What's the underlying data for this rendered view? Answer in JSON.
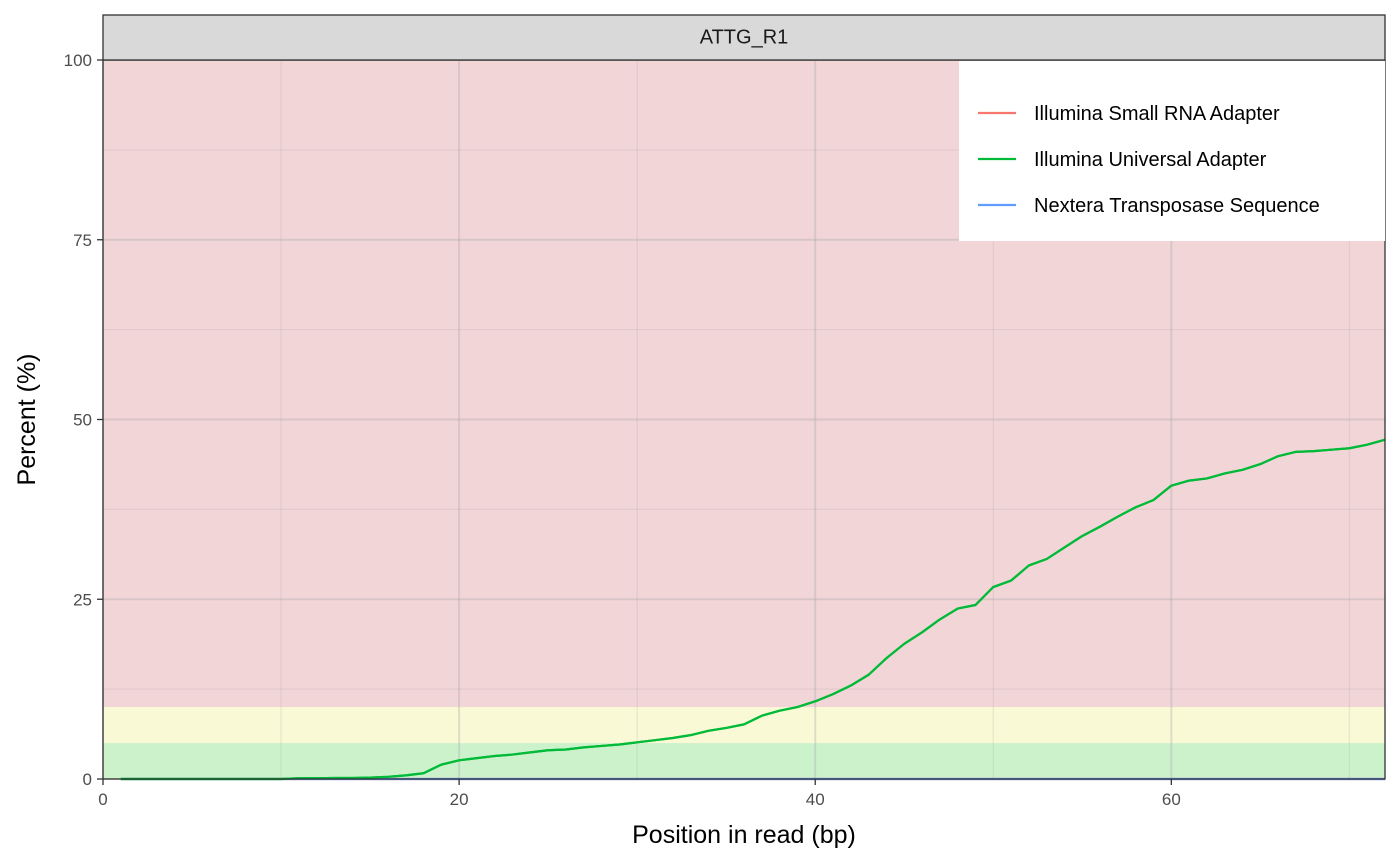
{
  "chart_data": {
    "type": "line",
    "facet_label": "ATTG_R1",
    "xlabel": "Position in read (bp)",
    "ylabel": "Percent (%)",
    "xlim": [
      0,
      72
    ],
    "ylim": [
      0,
      100
    ],
    "x_ticks": [
      0,
      20,
      40,
      60
    ],
    "y_ticks": [
      0,
      25,
      50,
      75,
      100
    ],
    "grid": true,
    "legend_position": "top-right",
    "background_bands": [
      {
        "from": 0,
        "to": 5,
        "color": "#CCF2CC"
      },
      {
        "from": 5,
        "to": 10,
        "color": "#F9F9D5"
      },
      {
        "from": 10,
        "to": 100,
        "color": "#F2D5D7"
      }
    ],
    "series": [
      {
        "name": "Illumina Small RNA Adapter",
        "color": "#F8766D",
        "x": [
          1,
          2,
          3,
          4,
          5,
          6,
          7,
          8,
          9,
          10,
          11,
          12,
          13,
          14,
          15,
          16,
          17,
          18,
          19,
          20,
          21,
          22,
          23,
          24,
          25,
          26,
          27,
          28,
          29,
          30,
          31,
          32,
          33,
          34,
          35,
          36,
          37,
          38,
          39,
          40,
          41,
          42,
          43,
          44,
          45,
          46,
          47,
          48,
          49,
          50,
          51,
          52,
          53,
          54,
          55,
          56,
          57,
          58,
          59,
          60,
          61,
          62,
          63,
          64,
          65,
          66,
          67,
          68,
          69,
          70,
          71,
          72
        ],
        "values": [
          0,
          0,
          0,
          0,
          0,
          0,
          0,
          0,
          0,
          0,
          0,
          0,
          0,
          0,
          0,
          0,
          0,
          0,
          0,
          0,
          0,
          0,
          0,
          0,
          0,
          0,
          0,
          0,
          0,
          0,
          0,
          0,
          0,
          0,
          0,
          0,
          0,
          0,
          0,
          0,
          0,
          0,
          0,
          0,
          0,
          0,
          0,
          0,
          0,
          0,
          0,
          0,
          0,
          0,
          0,
          0,
          0,
          0,
          0,
          0,
          0,
          0,
          0,
          0,
          0,
          0,
          0,
          0,
          0,
          0,
          0,
          0
        ]
      },
      {
        "name": "Illumina Universal Adapter",
        "color": "#00BA38",
        "x": [
          1,
          2,
          3,
          4,
          5,
          6,
          7,
          8,
          9,
          10,
          11,
          12,
          13,
          14,
          15,
          16,
          17,
          18,
          19,
          20,
          21,
          22,
          23,
          24,
          25,
          26,
          27,
          28,
          29,
          30,
          31,
          32,
          33,
          34,
          35,
          36,
          37,
          38,
          39,
          40,
          41,
          42,
          43,
          44,
          45,
          46,
          47,
          48,
          49,
          50,
          51,
          52,
          53,
          54,
          55,
          56,
          57,
          58,
          59,
          60,
          61,
          62,
          63,
          64,
          65,
          66,
          67,
          68,
          69,
          70,
          71,
          72
        ],
        "values": [
          0,
          0,
          0,
          0,
          0,
          0,
          0,
          0,
          0,
          0,
          0.1,
          0.1,
          0.15,
          0.15,
          0.2,
          0.3,
          0.5,
          0.8,
          2.0,
          2.6,
          2.9,
          3.2,
          3.4,
          3.7,
          4.0,
          4.1,
          4.4,
          4.6,
          4.8,
          5.1,
          5.4,
          5.7,
          6.1,
          6.7,
          7.1,
          7.6,
          8.8,
          9.5,
          10.0,
          10.8,
          11.8,
          13.0,
          14.5,
          16.8,
          18.8,
          20.4,
          22.2,
          23.7,
          24.2,
          26.7,
          27.6,
          29.7,
          30.6,
          32.2,
          33.8,
          35.1,
          36.5,
          37.8,
          38.8,
          40.8,
          41.5,
          41.8,
          42.5,
          43.0,
          43.8,
          44.9,
          45.5,
          45.6,
          45.8,
          46.0,
          46.5,
          47.2
        ]
      },
      {
        "name": "Nextera Transposase Sequence",
        "color": "#619CFF",
        "x": [
          1,
          2,
          3,
          4,
          5,
          6,
          7,
          8,
          9,
          10,
          11,
          12,
          13,
          14,
          15,
          16,
          17,
          18,
          19,
          20,
          21,
          22,
          23,
          24,
          25,
          26,
          27,
          28,
          29,
          30,
          31,
          32,
          33,
          34,
          35,
          36,
          37,
          38,
          39,
          40,
          41,
          42,
          43,
          44,
          45,
          46,
          47,
          48,
          49,
          50,
          51,
          52,
          53,
          54,
          55,
          56,
          57,
          58,
          59,
          60,
          61,
          62,
          63,
          64,
          65,
          66,
          67,
          68,
          69,
          70,
          71,
          72
        ],
        "values": [
          0,
          0,
          0,
          0,
          0,
          0,
          0,
          0,
          0,
          0,
          0,
          0,
          0,
          0,
          0,
          0,
          0,
          0,
          0,
          0,
          0,
          0,
          0,
          0,
          0,
          0,
          0,
          0,
          0,
          0,
          0,
          0,
          0,
          0,
          0,
          0,
          0,
          0,
          0,
          0,
          0,
          0,
          0,
          0,
          0,
          0,
          0,
          0,
          0,
          0,
          0,
          0,
          0,
          0,
          0,
          0,
          0,
          0,
          0,
          0,
          0,
          0,
          0,
          0,
          0,
          0,
          0,
          0,
          0,
          0,
          0,
          0
        ]
      }
    ]
  }
}
